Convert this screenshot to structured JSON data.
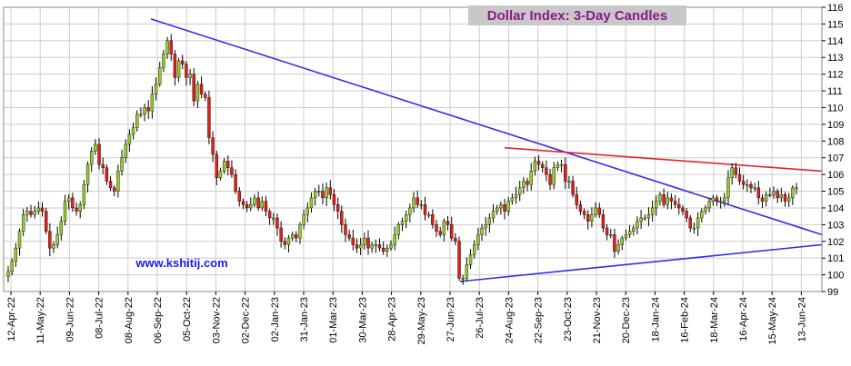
{
  "chart_data": {
    "type": "candlestick",
    "title": "Dollar Index: 3-Day Candles",
    "annotation": "www.kshitij.com",
    "ylim": [
      99,
      116
    ],
    "y_ticks": [
      99,
      100,
      101,
      102,
      103,
      104,
      105,
      106,
      107,
      108,
      109,
      110,
      111,
      112,
      113,
      114,
      115,
      116
    ],
    "y_axis_side": "right",
    "grid": true,
    "x_tick_labels": [
      "12-Apr-22",
      "11-May-22",
      "09-Jun-22",
      "08-Jul-22",
      "08-Aug-22",
      "06-Sep-22",
      "05-Oct-22",
      "03-Nov-22",
      "02-Dec-22",
      "02-Jan-23",
      "31-Jan-23",
      "01-Mar-23",
      "30-Mar-23",
      "28-Apr-23",
      "29-May-23",
      "27-Jun-23",
      "26-Jul-23",
      "24-Aug-23",
      "22-Sep-23",
      "23-Oct-23",
      "21-Nov-23",
      "20-Dec-23",
      "18-Jan-24",
      "16-Feb-24",
      "18-Mar-24",
      "16-Apr-24",
      "15-May-24",
      "13-Jun-24"
    ],
    "closes": [
      100.2,
      100.8,
      101.6,
      102.6,
      103.6,
      103.8,
      103.6,
      103.8,
      104.0,
      103.8,
      102.6,
      101.6,
      101.8,
      102.4,
      103.2,
      104.4,
      104.6,
      104.0,
      103.8,
      104.2,
      105.4,
      106.6,
      107.4,
      107.8,
      106.6,
      106.4,
      105.6,
      105.2,
      105.0,
      106.2,
      107.0,
      107.8,
      108.4,
      108.8,
      109.6,
      109.6,
      110.0,
      109.8,
      110.8,
      111.4,
      112.4,
      113.2,
      114.0,
      113.2,
      111.8,
      112.8,
      112.6,
      111.8,
      112.0,
      110.4,
      111.4,
      110.8,
      110.6,
      108.2,
      107.2,
      105.8,
      106.2,
      106.8,
      106.4,
      106.0,
      105.0,
      104.4,
      104.2,
      104.0,
      104.2,
      104.6,
      104.0,
      104.4,
      103.8,
      103.4,
      103.4,
      102.8,
      102.0,
      101.8,
      102.2,
      102.4,
      102.2,
      103.0,
      103.6,
      104.0,
      104.6,
      105.0,
      105.0,
      104.6,
      105.2,
      104.8,
      104.2,
      103.8,
      103.0,
      102.4,
      102.2,
      101.8,
      101.6,
      101.8,
      102.2,
      101.6,
      101.8,
      101.8,
      101.6,
      101.4,
      101.6,
      101.8,
      102.4,
      103.0,
      103.2,
      103.6,
      104.0,
      104.6,
      104.2,
      104.2,
      103.6,
      103.6,
      103.0,
      102.6,
      102.4,
      103.2,
      103.0,
      102.2,
      102.0,
      99.8,
      99.8,
      100.6,
      101.2,
      101.8,
      102.4,
      102.8,
      103.0,
      103.4,
      103.8,
      104.0,
      104.2,
      103.8,
      104.4,
      104.6,
      104.8,
      105.2,
      105.6,
      105.4,
      106.2,
      106.8,
      106.6,
      106.4,
      106.0,
      105.4,
      106.4,
      106.6,
      106.6,
      105.6,
      105.6,
      104.8,
      104.2,
      103.8,
      103.6,
      103.2,
      103.6,
      104.0,
      103.6,
      102.8,
      102.4,
      102.4,
      101.4,
      101.8,
      102.2,
      102.4,
      102.6,
      102.8,
      103.2,
      103.4,
      103.4,
      103.6,
      104.0,
      104.4,
      104.8,
      104.2,
      104.6,
      104.4,
      104.2,
      104.0,
      103.8,
      103.4,
      102.8,
      102.8,
      103.4,
      103.8,
      104.0,
      104.4,
      104.6,
      104.4,
      104.4,
      104.6,
      105.8,
      106.4,
      106.0,
      105.6,
      105.4,
      105.4,
      105.2,
      105.2,
      104.6,
      104.4,
      104.8,
      104.8,
      105.0,
      104.6,
      104.8,
      104.4,
      104.6,
      105.2,
      105.2
    ]
  },
  "colors": {
    "bull": "#98cc28",
    "bear": "#e0201a",
    "trend_upper": "#2e2ee8",
    "trend_lower": "#2e2ee8",
    "resistance": "#e8222a",
    "grid": "#cccccc",
    "title_bg": "#c8c8c8",
    "title_fg": "#8a1a8a",
    "site_fg": "#1a1aff"
  },
  "icons": []
}
